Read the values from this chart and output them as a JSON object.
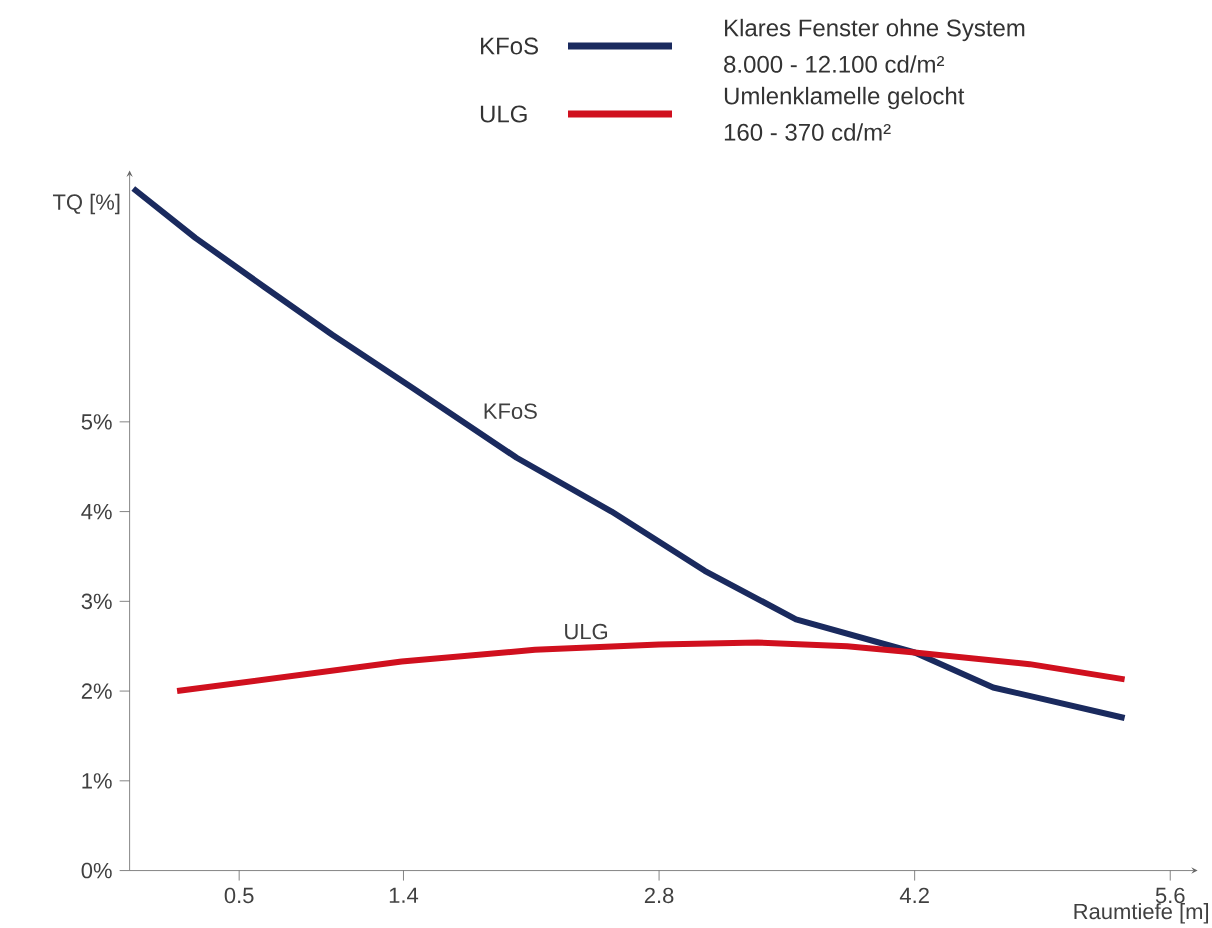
{
  "chart_data": {
    "type": "line",
    "xlabel": "Raumtiefe  [m]",
    "ylabel": "TQ  [%]",
    "xlim": [
      -0.1,
      5.75
    ],
    "ylim": [
      0,
      7.8
    ],
    "xticks": [
      0.5,
      1.4,
      2.8,
      4.2,
      5.6
    ],
    "yticks": [
      {
        "value": 0,
        "label": "0%"
      },
      {
        "value": 1,
        "label": "1%"
      },
      {
        "value": 2,
        "label": "2%"
      },
      {
        "value": 3,
        "label": "3%"
      },
      {
        "value": 4,
        "label": "4%"
      },
      {
        "value": 5,
        "label": "5%"
      }
    ],
    "series": [
      {
        "name": "KFoS",
        "color": "#1a2a5e",
        "x": [
          -0.08,
          0.26,
          0.64,
          1.01,
          1.44,
          2.02,
          2.54,
          3.05,
          3.55,
          4.2,
          4.63,
          5.35
        ],
        "values": [
          7.6,
          7.05,
          6.5,
          5.97,
          5.39,
          4.6,
          4.0,
          3.34,
          2.8,
          2.43,
          2.04,
          1.7
        ]
      },
      {
        "name": "ULG",
        "color": "#d0101e",
        "x": [
          0.16,
          1.39,
          2.12,
          2.8,
          3.34,
          3.83,
          4.2,
          4.83,
          5.35
        ],
        "values": [
          2.0,
          2.33,
          2.46,
          2.52,
          2.54,
          2.5,
          2.43,
          2.3,
          2.13
        ]
      }
    ],
    "annotations": [
      "Klares Fenster ohne System",
      "8.000 - 12.100 cd/m²",
      "Umlenklamelle gelocht",
      "160 - 370 cd/m²"
    ],
    "legend": "top",
    "grid": false,
    "marker": "none",
    "line_style": "solid"
  }
}
